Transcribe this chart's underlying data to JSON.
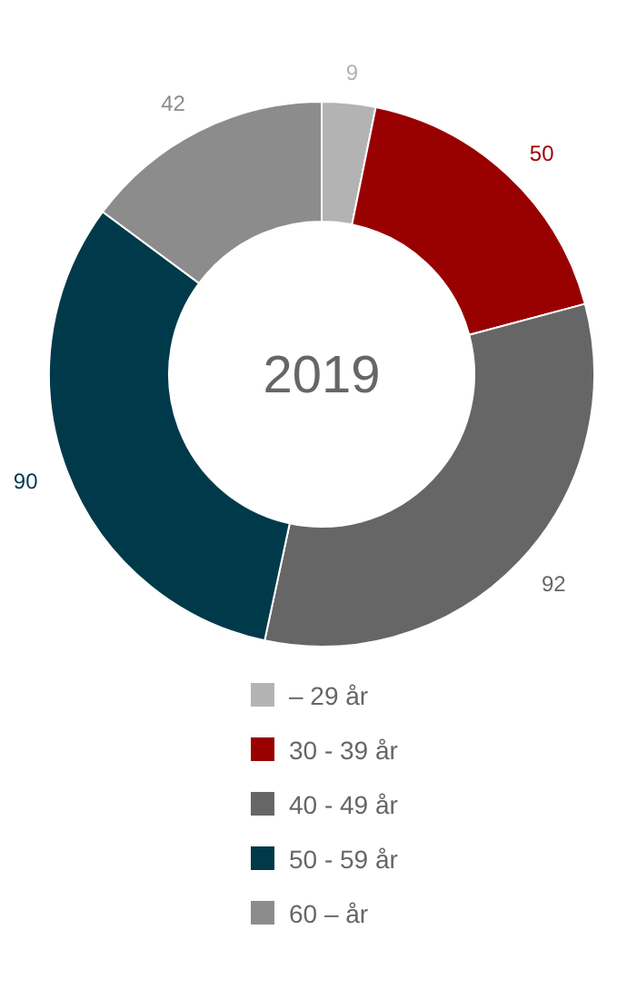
{
  "chart_data": {
    "type": "donut",
    "title": "2019",
    "categories": [
      "– 29 år",
      "30 - 39 år",
      "40 - 49 år",
      "50 - 59 år",
      "60 – år"
    ],
    "values": [
      9,
      50,
      92,
      90,
      42
    ],
    "colors": [
      "#b3b3b3",
      "#990000",
      "#666666",
      "#003a4a",
      "#8c8c8c"
    ],
    "data_labels": true,
    "legend": "bottom"
  }
}
